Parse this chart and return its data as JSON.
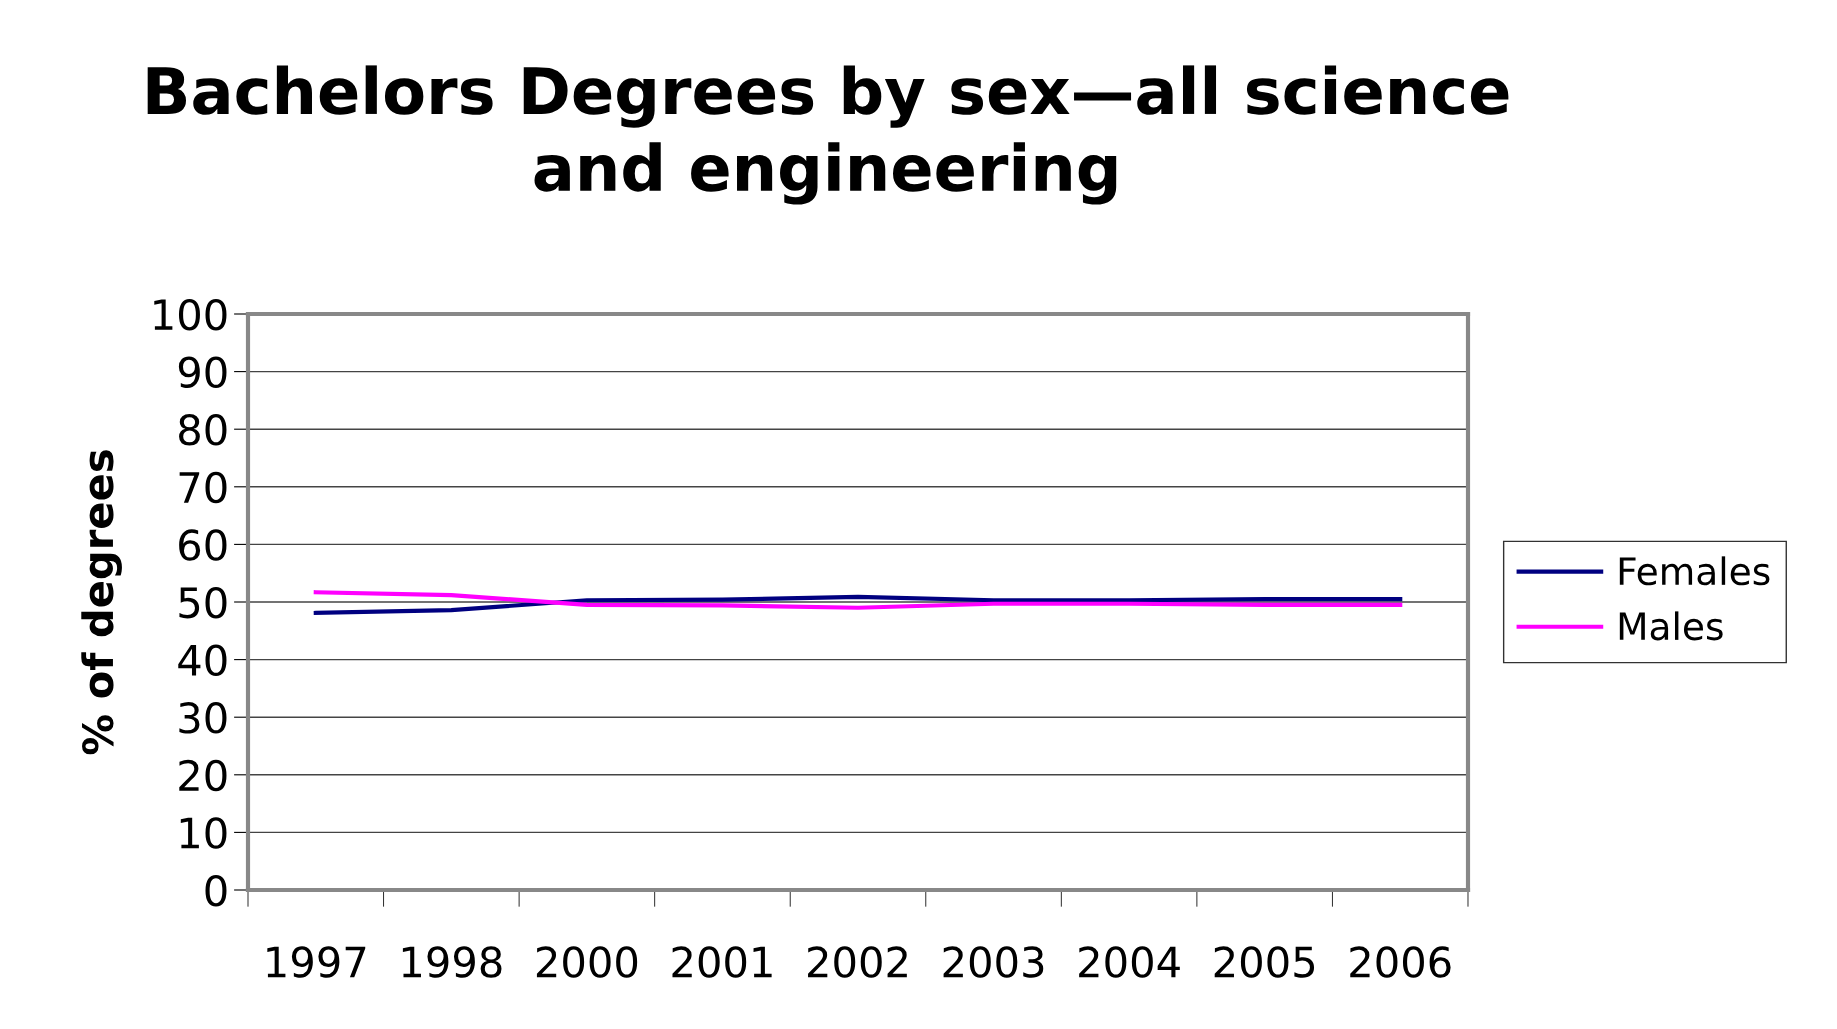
{
  "chart_data": {
    "type": "line",
    "title": "Bachelors Degrees by sex—all science\nand engineering",
    "ylabel": "% of degrees",
    "categories": [
      "1997",
      "1998",
      "2000",
      "2001",
      "2002",
      "2003",
      "2004",
      "2005",
      "2006"
    ],
    "series": [
      {
        "name": "Females",
        "color": "#000080",
        "values": [
          48.1,
          48.6,
          50.3,
          50.4,
          50.9,
          50.3,
          50.3,
          50.5,
          50.5
        ]
      },
      {
        "name": "Males",
        "color": "#ff00ff",
        "values": [
          51.7,
          51.2,
          49.5,
          49.4,
          49.0,
          49.7,
          49.7,
          49.5,
          49.5
        ]
      }
    ],
    "ylim": [
      0,
      100
    ],
    "yticks": [
      0,
      10,
      20,
      30,
      40,
      50,
      60,
      70,
      80,
      90,
      100
    ],
    "grid": "y",
    "legend": "right",
    "marker": "none"
  }
}
